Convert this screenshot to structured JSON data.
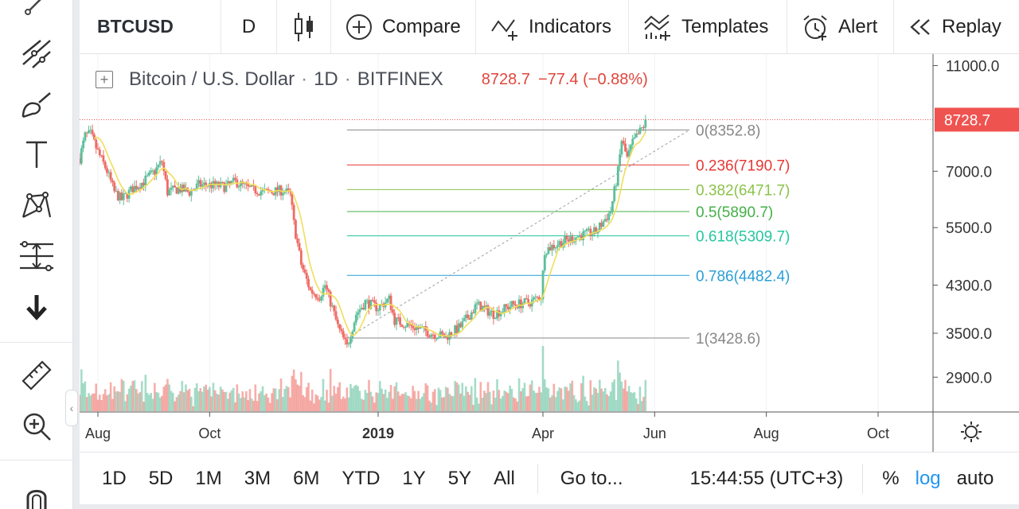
{
  "toolbar": {
    "symbol": "BTCUSD",
    "interval": "D",
    "compare": "Compare",
    "indicators": "Indicators",
    "templates": "Templates",
    "alert": "Alert",
    "replay": "Replay"
  },
  "left_tools": [
    "cursor-icon",
    "trend-line-icon",
    "brush-icon",
    "text-icon",
    "pattern-icon",
    "fib-retracement-icon",
    "more-arrow-icon",
    "ruler-icon",
    "zoom-in-icon",
    "magnet-icon"
  ],
  "legend": {
    "name": "Bitcoin / U.S. Dollar",
    "interval": "1D",
    "exchange": "BITFINEX",
    "price": "8728.7",
    "change": "−77.4 (−0.88%)",
    "sep": "·",
    "change_color": "#e0463c"
  },
  "price_badge": "8728.7",
  "colors": {
    "up": "#5dbf9a",
    "down": "#ef6b64",
    "ma": "#f0de5a",
    "price_line": "#ef5350"
  },
  "bottom": {
    "ranges": [
      "1D",
      "5D",
      "1M",
      "3M",
      "6M",
      "YTD",
      "1Y",
      "5Y",
      "All"
    ],
    "goto": "Go to...",
    "clock": "15:44:55 (UTC+3)",
    "percent": "%",
    "log": "log",
    "auto": "auto"
  },
  "chart_data": {
    "type": "candlestick",
    "symbol": "BTCUSD",
    "scale": "log",
    "ylim": [
      2500,
      11500
    ],
    "y_ticks": [
      "11000.0",
      "7000.0",
      "5500.0",
      "4300.0",
      "3500.0",
      "2900.0"
    ],
    "y_tick_values": [
      11000,
      7000,
      5500,
      4300,
      3500,
      2900
    ],
    "x_ticks": [
      "Aug",
      "Oct",
      "2019",
      "Apr",
      "Jun",
      "Aug",
      "Oct"
    ],
    "x_tick_dates": [
      "2018-08-01",
      "2018-10-01",
      "2019-01-01",
      "2019-04-01",
      "2019-06-01",
      "2019-08-01",
      "2019-10-01"
    ],
    "x_range": [
      "2018-07-22",
      "2019-10-31"
    ],
    "last_price": 8728.7,
    "fib_levels": [
      {
        "label": "0(8352.8)",
        "value": 8352.8,
        "color": "#888888"
      },
      {
        "label": "0.236(7190.7)",
        "value": 7190.7,
        "color": "#e53935"
      },
      {
        "label": "0.382(6471.7)",
        "value": 6471.7,
        "color": "#8bc34a"
      },
      {
        "label": "0.5(5890.7)",
        "value": 5890.7,
        "color": "#43b047"
      },
      {
        "label": "0.618(5309.7)",
        "value": 5309.7,
        "color": "#26c6a0"
      },
      {
        "label": "0.786(4482.4)",
        "value": 4482.4,
        "color": "#2a9fd6"
      },
      {
        "label": "1(3428.6)",
        "value": 3428.6,
        "color": "#888888"
      }
    ],
    "fib_start_date": "2018-12-15",
    "fib_end_date": "2019-06-20",
    "fib_trend_from": {
      "date": "2018-12-15",
      "value": 3428.6
    },
    "fib_trend_to": {
      "date": "2019-06-20",
      "value": 8352.8
    },
    "ma_period": 9,
    "price_path": [
      [
        "2018-07-22",
        7400
      ],
      [
        "2018-07-25",
        8150
      ],
      [
        "2018-07-28",
        8200
      ],
      [
        "2018-08-01",
        7600
      ],
      [
        "2018-08-06",
        7000
      ],
      [
        "2018-08-10",
        6400
      ],
      [
        "2018-08-14",
        6200
      ],
      [
        "2018-08-20",
        6500
      ],
      [
        "2018-08-26",
        6700
      ],
      [
        "2018-09-01",
        7000
      ],
      [
        "2018-09-05",
        7300
      ],
      [
        "2018-09-08",
        6400
      ],
      [
        "2018-09-14",
        6500
      ],
      [
        "2018-09-20",
        6400
      ],
      [
        "2018-09-25",
        6600
      ],
      [
        "2018-10-01",
        6600
      ],
      [
        "2018-10-10",
        6550
      ],
      [
        "2018-10-15",
        6700
      ],
      [
        "2018-10-22",
        6500
      ],
      [
        "2018-11-01",
        6400
      ],
      [
        "2018-11-10",
        6450
      ],
      [
        "2018-11-14",
        6350
      ],
      [
        "2018-11-16",
        5600
      ],
      [
        "2018-11-20",
        4700
      ],
      [
        "2018-11-25",
        4200
      ],
      [
        "2018-11-30",
        4100
      ],
      [
        "2018-12-03",
        4300
      ],
      [
        "2018-12-07",
        3900
      ],
      [
        "2018-12-10",
        3600
      ],
      [
        "2018-12-15",
        3300
      ],
      [
        "2018-12-20",
        3800
      ],
      [
        "2018-12-25",
        4000
      ],
      [
        "2019-01-01",
        3900
      ],
      [
        "2019-01-07",
        4050
      ],
      [
        "2019-01-10",
        3700
      ],
      [
        "2019-01-20",
        3600
      ],
      [
        "2019-01-30",
        3500
      ],
      [
        "2019-02-07",
        3450
      ],
      [
        "2019-02-15",
        3600
      ],
      [
        "2019-02-24",
        3950
      ],
      [
        "2019-03-05",
        3800
      ],
      [
        "2019-03-15",
        3950
      ],
      [
        "2019-03-25",
        4000
      ],
      [
        "2019-03-31",
        4100
      ],
      [
        "2019-04-02",
        5000
      ],
      [
        "2019-04-10",
        5150
      ],
      [
        "2019-04-20",
        5300
      ],
      [
        "2019-04-30",
        5400
      ],
      [
        "2019-05-08",
        5900
      ],
      [
        "2019-05-12",
        7000
      ],
      [
        "2019-05-14",
        8000
      ],
      [
        "2019-05-17",
        7400
      ],
      [
        "2019-05-20",
        7900
      ],
      [
        "2019-05-26",
        8500
      ],
      [
        "2019-05-27",
        8750
      ]
    ],
    "volume_scale": [
      0,
      100
    ]
  }
}
